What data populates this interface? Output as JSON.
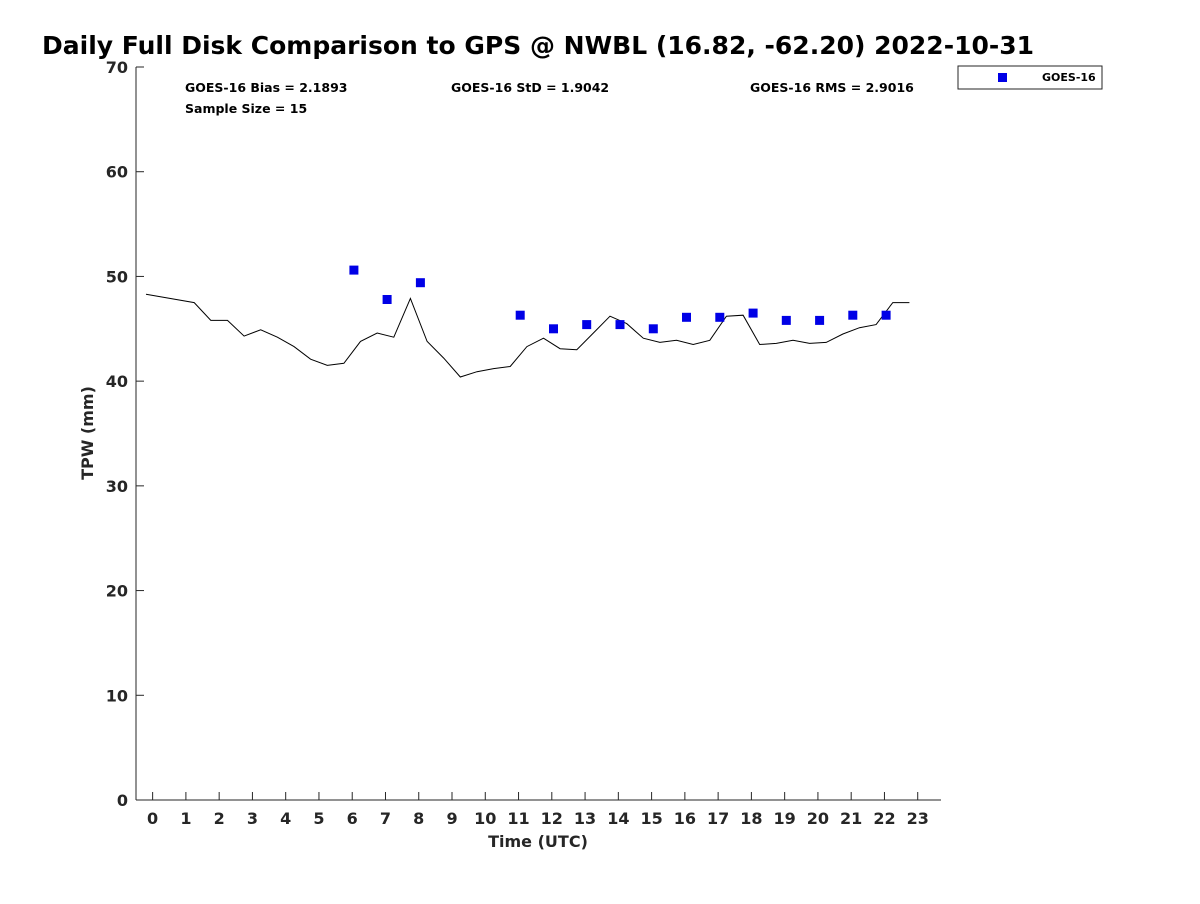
{
  "chart_data": {
    "type": "scatter",
    "title": "Daily Full Disk Comparison to GPS @ NWBL (16.82, -62.20) 2022-10-31",
    "xlabel": "Time (UTC)",
    "ylabel": "TPW (mm)",
    "xlim": [
      -0.5,
      23.7
    ],
    "ylim": [
      0,
      70
    ],
    "x_ticks": [
      0,
      1,
      2,
      3,
      4,
      5,
      6,
      7,
      8,
      9,
      10,
      11,
      12,
      13,
      14,
      15,
      16,
      17,
      18,
      19,
      20,
      21,
      22,
      23
    ],
    "y_ticks": [
      0,
      10,
      20,
      30,
      40,
      50,
      60,
      70
    ],
    "grid": false,
    "legend_position": "top-right (outside)",
    "stats": {
      "bias": "GOES-16 Bias = 2.1893",
      "std": "GOES-16 StD = 1.9042",
      "rms": "GOES-16 RMS = 2.9016",
      "sample_size": "Sample Size = 15"
    },
    "series": [
      {
        "name": "GOES-16",
        "kind": "markers",
        "color": "#0000e6",
        "x": [
          6.05,
          7.05,
          8.05,
          11.05,
          12.05,
          13.05,
          14.05,
          15.05,
          16.05,
          17.05,
          18.05,
          19.05,
          20.05,
          21.05,
          22.05
        ],
        "y": [
          50.6,
          47.8,
          49.4,
          46.3,
          45.0,
          45.4,
          45.4,
          45.0,
          46.1,
          46.1,
          46.5,
          45.8,
          45.8,
          46.3,
          46.3
        ]
      },
      {
        "kind": "line",
        "color": "#000000",
        "x": [
          -0.2,
          1.25,
          1.75,
          2.25,
          2.75,
          3.25,
          3.75,
          4.25,
          4.75,
          5.25,
          5.75,
          6.25,
          6.75,
          7.25,
          7.75,
          8.25,
          8.75,
          9.25,
          9.75,
          10.25,
          10.75,
          11.25,
          11.75,
          12.25,
          12.75,
          13.25,
          13.75,
          14.25,
          14.75,
          15.25,
          15.75,
          16.25,
          16.75,
          17.25,
          17.75,
          18.25,
          18.75,
          19.25,
          19.75,
          20.25,
          20.75,
          21.25,
          21.75,
          22.25,
          22.75
        ],
        "y": [
          48.3,
          47.5,
          45.8,
          45.8,
          44.3,
          44.9,
          44.2,
          43.3,
          42.1,
          41.5,
          41.7,
          43.8,
          44.6,
          44.2,
          47.9,
          43.8,
          42.2,
          40.4,
          40.9,
          41.2,
          41.4,
          43.3,
          44.1,
          43.1,
          43.0,
          44.6,
          46.2,
          45.5,
          44.1,
          43.7,
          43.9,
          43.5,
          43.9,
          46.2,
          46.3,
          43.5,
          43.6,
          43.9,
          43.6,
          43.7,
          44.5,
          45.1,
          45.4,
          47.5,
          47.5
        ]
      }
    ]
  }
}
